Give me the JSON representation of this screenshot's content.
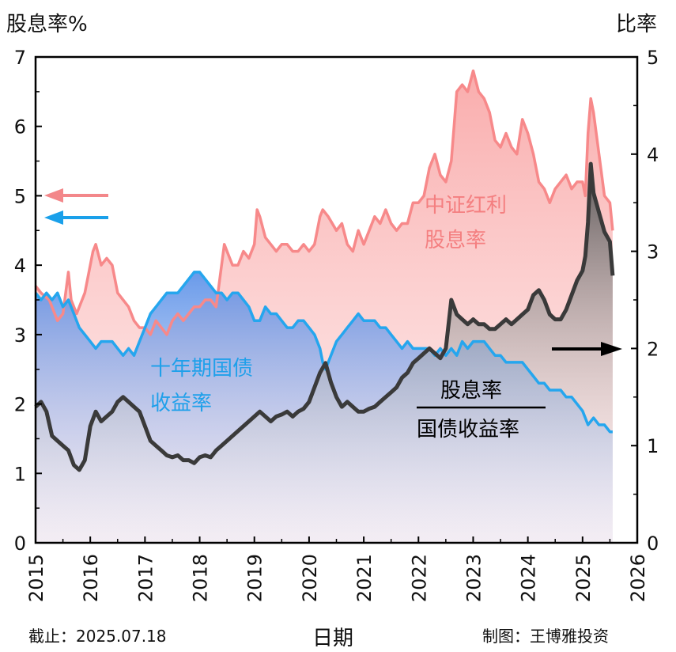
{
  "header": {
    "left_axis_label": "股息率%",
    "right_axis_label": "比率"
  },
  "footer": {
    "cutoff": "截止：2025.07.18",
    "author": "制图：王博雅投资",
    "xlabel": "日期"
  },
  "annotations": {
    "dividend_yield_label": [
      "中证红利",
      "股息率"
    ],
    "bond_yield_label": [
      "十年期国债",
      "收益率"
    ],
    "ratio_numerator": "股息率",
    "ratio_denominator": "国债收益率"
  },
  "colors": {
    "dividend_yield": "#f7898a",
    "bond_yield": "#25a6ee",
    "ratio": "#3a3a3a",
    "axis": "#000000"
  },
  "chart_data": {
    "type": "line",
    "xlim": [
      2015,
      2026
    ],
    "x_ticks": [
      "2015",
      "2016",
      "2017",
      "2018",
      "2019",
      "2020",
      "2021",
      "2022",
      "2023",
      "2024",
      "2025",
      "2026"
    ],
    "left_axis": {
      "label": "股息率%",
      "ylim": [
        0,
        7
      ],
      "ticks": [
        0,
        1,
        2,
        3,
        4,
        5,
        6,
        7
      ]
    },
    "right_axis": {
      "label": "比率",
      "ylim": [
        0,
        5
      ],
      "ticks": [
        0,
        1,
        2,
        3,
        4,
        5
      ]
    },
    "series": [
      {
        "name": "中证红利股息率",
        "axis": "left",
        "x": [
          2015.0,
          2015.1,
          2015.25,
          2015.4,
          2015.5,
          2015.6,
          2015.65,
          2015.75,
          2015.9,
          2016.05,
          2016.1,
          2016.2,
          2016.3,
          2016.4,
          2016.5,
          2016.6,
          2016.7,
          2016.8,
          2016.9,
          2017.0,
          2017.1,
          2017.2,
          2017.3,
          2017.4,
          2017.5,
          2017.6,
          2017.7,
          2017.8,
          2017.9,
          2018.0,
          2018.1,
          2018.2,
          2018.3,
          2018.35,
          2018.45,
          2018.55,
          2018.6,
          2018.7,
          2018.8,
          2018.9,
          2019.0,
          2019.05,
          2019.1,
          2019.2,
          2019.3,
          2019.4,
          2019.5,
          2019.6,
          2019.7,
          2019.8,
          2019.9,
          2020.0,
          2020.1,
          2020.2,
          2020.25,
          2020.35,
          2020.5,
          2020.6,
          2020.7,
          2020.8,
          2020.9,
          2021.0,
          2021.1,
          2021.2,
          2021.3,
          2021.4,
          2021.5,
          2021.6,
          2021.7,
          2021.8,
          2021.9,
          2022.0,
          2022.1,
          2022.2,
          2022.3,
          2022.4,
          2022.5,
          2022.6,
          2022.7,
          2022.8,
          2022.9,
          2023.0,
          2023.1,
          2023.2,
          2023.3,
          2023.4,
          2023.5,
          2023.6,
          2023.7,
          2023.8,
          2023.9,
          2024.0,
          2024.1,
          2024.2,
          2024.3,
          2024.4,
          2024.5,
          2024.6,
          2024.7,
          2024.8,
          2024.9,
          2025.0,
          2025.05,
          2025.1,
          2025.15,
          2025.2,
          2025.3,
          2025.4,
          2025.5,
          2025.55
        ],
        "values": [
          3.7,
          3.6,
          3.5,
          3.2,
          3.3,
          3.9,
          3.5,
          3.3,
          3.6,
          4.2,
          4.3,
          4.0,
          4.1,
          4.0,
          3.6,
          3.5,
          3.4,
          3.2,
          3.1,
          3.1,
          3.0,
          3.2,
          3.1,
          3.0,
          3.2,
          3.3,
          3.2,
          3.3,
          3.4,
          3.4,
          3.5,
          3.5,
          3.4,
          3.7,
          4.3,
          4.1,
          4.0,
          4.0,
          4.2,
          4.1,
          4.3,
          4.8,
          4.7,
          4.4,
          4.3,
          4.2,
          4.3,
          4.3,
          4.2,
          4.2,
          4.3,
          4.2,
          4.3,
          4.7,
          4.8,
          4.7,
          4.5,
          4.6,
          4.3,
          4.2,
          4.5,
          4.3,
          4.5,
          4.7,
          4.6,
          4.8,
          4.6,
          4.5,
          4.6,
          4.6,
          4.9,
          4.9,
          5.0,
          5.4,
          5.6,
          5.3,
          5.2,
          5.5,
          6.5,
          6.6,
          6.5,
          6.8,
          6.5,
          6.4,
          6.2,
          5.8,
          5.7,
          5.9,
          5.7,
          5.6,
          6.1,
          5.9,
          5.6,
          5.2,
          5.1,
          4.9,
          5.1,
          5.2,
          5.3,
          5.1,
          5.2,
          5.2,
          5.0,
          5.9,
          6.4,
          6.2,
          5.6,
          5.0,
          4.9,
          4.5
        ]
      },
      {
        "name": "十年期国债收益率",
        "axis": "left",
        "x": [
          2015.0,
          2015.1,
          2015.2,
          2015.3,
          2015.4,
          2015.5,
          2015.6,
          2015.7,
          2015.8,
          2015.9,
          2016.0,
          2016.1,
          2016.2,
          2016.3,
          2016.4,
          2016.5,
          2016.6,
          2016.7,
          2016.8,
          2016.9,
          2017.0,
          2017.1,
          2017.2,
          2017.3,
          2017.4,
          2017.5,
          2017.6,
          2017.7,
          2017.8,
          2017.9,
          2018.0,
          2018.1,
          2018.2,
          2018.3,
          2018.4,
          2018.5,
          2018.6,
          2018.7,
          2018.8,
          2018.9,
          2019.0,
          2019.1,
          2019.2,
          2019.3,
          2019.4,
          2019.5,
          2019.6,
          2019.7,
          2019.8,
          2019.9,
          2020.0,
          2020.1,
          2020.2,
          2020.25,
          2020.3,
          2020.4,
          2020.5,
          2020.6,
          2020.7,
          2020.8,
          2020.9,
          2021.0,
          2021.1,
          2021.2,
          2021.3,
          2021.4,
          2021.5,
          2021.6,
          2021.7,
          2021.8,
          2021.9,
          2022.0,
          2022.1,
          2022.2,
          2022.3,
          2022.4,
          2022.5,
          2022.6,
          2022.7,
          2022.8,
          2022.9,
          2023.0,
          2023.1,
          2023.2,
          2023.3,
          2023.4,
          2023.5,
          2023.6,
          2023.7,
          2023.8,
          2023.9,
          2024.0,
          2024.1,
          2024.2,
          2024.3,
          2024.4,
          2024.5,
          2024.6,
          2024.7,
          2024.8,
          2024.9,
          2025.0,
          2025.1,
          2025.2,
          2025.3,
          2025.4,
          2025.5,
          2025.55
        ],
        "values": [
          3.6,
          3.5,
          3.6,
          3.5,
          3.6,
          3.4,
          3.5,
          3.3,
          3.1,
          3.0,
          2.9,
          2.8,
          2.9,
          2.9,
          2.9,
          2.8,
          2.7,
          2.8,
          2.7,
          2.9,
          3.1,
          3.3,
          3.4,
          3.5,
          3.6,
          3.6,
          3.6,
          3.7,
          3.8,
          3.9,
          3.9,
          3.8,
          3.7,
          3.6,
          3.6,
          3.5,
          3.6,
          3.6,
          3.5,
          3.4,
          3.2,
          3.2,
          3.4,
          3.3,
          3.3,
          3.2,
          3.1,
          3.1,
          3.2,
          3.2,
          3.1,
          3.0,
          2.8,
          2.6,
          2.5,
          2.7,
          2.9,
          3.0,
          3.1,
          3.2,
          3.3,
          3.2,
          3.2,
          3.2,
          3.1,
          3.1,
          3.0,
          2.9,
          2.8,
          2.9,
          2.8,
          2.8,
          2.8,
          2.8,
          2.7,
          2.8,
          2.7,
          2.8,
          2.7,
          2.9,
          2.8,
          2.9,
          2.9,
          2.9,
          2.8,
          2.7,
          2.7,
          2.6,
          2.6,
          2.6,
          2.6,
          2.5,
          2.4,
          2.3,
          2.3,
          2.2,
          2.2,
          2.2,
          2.1,
          2.1,
          2.0,
          1.9,
          1.7,
          1.8,
          1.7,
          1.7,
          1.6,
          1.6
        ]
      },
      {
        "name": "股息率/国债收益率",
        "axis": "right",
        "x": [
          2015.0,
          2015.1,
          2015.2,
          2015.3,
          2015.4,
          2015.5,
          2015.6,
          2015.7,
          2015.8,
          2015.9,
          2016.0,
          2016.1,
          2016.2,
          2016.3,
          2016.4,
          2016.5,
          2016.6,
          2016.7,
          2016.8,
          2016.9,
          2017.0,
          2017.1,
          2017.2,
          2017.3,
          2017.4,
          2017.5,
          2017.6,
          2017.7,
          2017.8,
          2017.9,
          2018.0,
          2018.1,
          2018.2,
          2018.3,
          2018.4,
          2018.5,
          2018.6,
          2018.7,
          2018.8,
          2018.9,
          2019.0,
          2019.1,
          2019.2,
          2019.3,
          2019.4,
          2019.5,
          2019.6,
          2019.7,
          2019.8,
          2019.9,
          2020.0,
          2020.1,
          2020.2,
          2020.3,
          2020.4,
          2020.5,
          2020.6,
          2020.7,
          2020.8,
          2020.9,
          2021.0,
          2021.1,
          2021.2,
          2021.3,
          2021.4,
          2021.5,
          2021.6,
          2021.7,
          2021.8,
          2021.9,
          2022.0,
          2022.1,
          2022.2,
          2022.3,
          2022.4,
          2022.5,
          2022.6,
          2022.7,
          2022.8,
          2022.9,
          2023.0,
          2023.1,
          2023.2,
          2023.3,
          2023.4,
          2023.5,
          2023.6,
          2023.7,
          2023.8,
          2023.9,
          2024.0,
          2024.1,
          2024.2,
          2024.3,
          2024.4,
          2024.5,
          2024.6,
          2024.7,
          2024.8,
          2024.9,
          2025.0,
          2025.05,
          2025.1,
          2025.15,
          2025.2,
          2025.3,
          2025.4,
          2025.5,
          2025.55
        ],
        "values": [
          1.4,
          1.45,
          1.35,
          1.1,
          1.05,
          1.0,
          0.95,
          0.8,
          0.75,
          0.85,
          1.2,
          1.35,
          1.25,
          1.3,
          1.35,
          1.45,
          1.5,
          1.45,
          1.4,
          1.35,
          1.2,
          1.05,
          1.0,
          0.95,
          0.9,
          0.88,
          0.9,
          0.85,
          0.85,
          0.82,
          0.88,
          0.9,
          0.88,
          0.95,
          1.0,
          1.05,
          1.1,
          1.15,
          1.2,
          1.25,
          1.3,
          1.35,
          1.3,
          1.25,
          1.3,
          1.32,
          1.35,
          1.3,
          1.35,
          1.38,
          1.45,
          1.6,
          1.75,
          1.85,
          1.65,
          1.5,
          1.4,
          1.45,
          1.4,
          1.35,
          1.35,
          1.38,
          1.4,
          1.45,
          1.5,
          1.55,
          1.6,
          1.7,
          1.75,
          1.85,
          1.9,
          1.95,
          2.0,
          1.95,
          1.9,
          2.0,
          2.5,
          2.35,
          2.3,
          2.25,
          2.3,
          2.25,
          2.25,
          2.2,
          2.2,
          2.25,
          2.3,
          2.25,
          2.3,
          2.35,
          2.4,
          2.55,
          2.6,
          2.5,
          2.35,
          2.3,
          2.3,
          2.4,
          2.55,
          2.7,
          2.8,
          2.95,
          3.3,
          3.9,
          3.6,
          3.4,
          3.2,
          3.1,
          2.75
        ]
      }
    ]
  }
}
